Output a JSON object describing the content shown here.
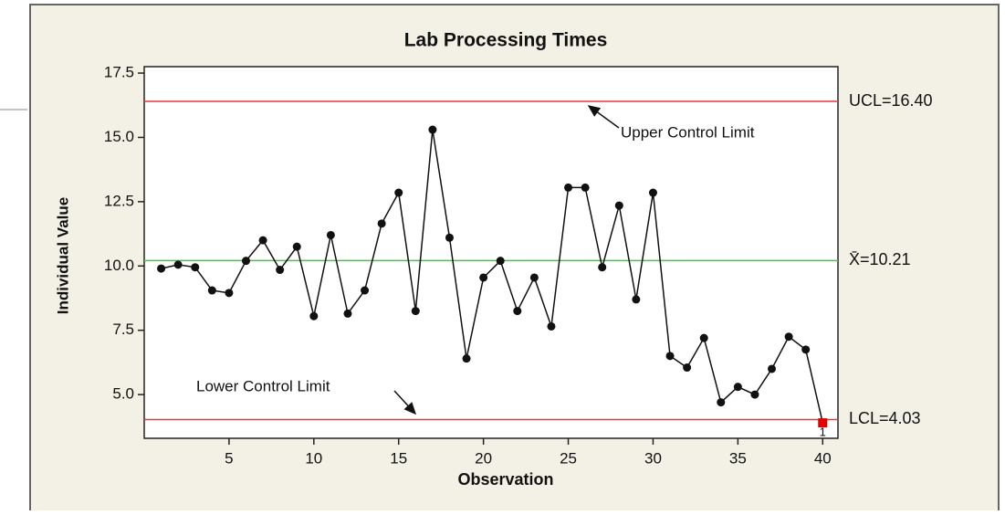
{
  "chart_data": {
    "type": "control",
    "title": "Lab Processing Times",
    "x_label": "Observation",
    "y_label": "Individual Value",
    "x": [
      1,
      2,
      3,
      4,
      5,
      6,
      7,
      8,
      9,
      10,
      11,
      12,
      13,
      14,
      15,
      16,
      17,
      18,
      19,
      20,
      21,
      22,
      23,
      24,
      25,
      26,
      27,
      28,
      29,
      30,
      31,
      32,
      33,
      34,
      35,
      36,
      37,
      38,
      39,
      40
    ],
    "series": [
      {
        "name": "Individual Value",
        "color": "#111111",
        "values": [
          9.9,
          10.05,
          9.95,
          9.05,
          8.95,
          10.2,
          11.0,
          9.85,
          10.75,
          8.05,
          11.2,
          8.15,
          9.05,
          11.65,
          12.85,
          8.25,
          15.3,
          11.1,
          6.4,
          9.55,
          10.2,
          8.25,
          9.55,
          7.65,
          13.05,
          13.05,
          9.95,
          12.35,
          8.7,
          12.85,
          6.5,
          6.05,
          7.2,
          4.7,
          5.3,
          5.0,
          6.0,
          7.25,
          6.75,
          3.9
        ]
      }
    ],
    "limits": [
      {
        "value": 16.4,
        "label": "UCL=16.40",
        "color": "#e8363a"
      },
      {
        "value": 10.21,
        "label": "X̄=10.21",
        "color": "#3ec93e"
      },
      {
        "value": 4.03,
        "label": "LCL=4.03",
        "color": "#e8363a"
      }
    ],
    "flagged": [
      {
        "x": 40,
        "label": "1",
        "color": "#e00000"
      }
    ],
    "annotations": [
      {
        "text": "Upper Control Limit"
      },
      {
        "text": "Lower Control Limit"
      }
    ],
    "xlim": [
      0,
      40.9
    ],
    "xticks": [
      5,
      10,
      15,
      20,
      25,
      30,
      35,
      40
    ],
    "ylim": [
      3.3,
      17.75
    ],
    "yticks": [
      {
        "value": 5,
        "label": "5.0"
      },
      {
        "value": 7.5,
        "label": "7.5"
      },
      {
        "value": 10,
        "label": "10.0"
      },
      {
        "value": 12.5,
        "label": "12.5"
      },
      {
        "value": 15,
        "label": "15.0"
      },
      {
        "value": 17.5,
        "label": "17.5"
      }
    ]
  }
}
